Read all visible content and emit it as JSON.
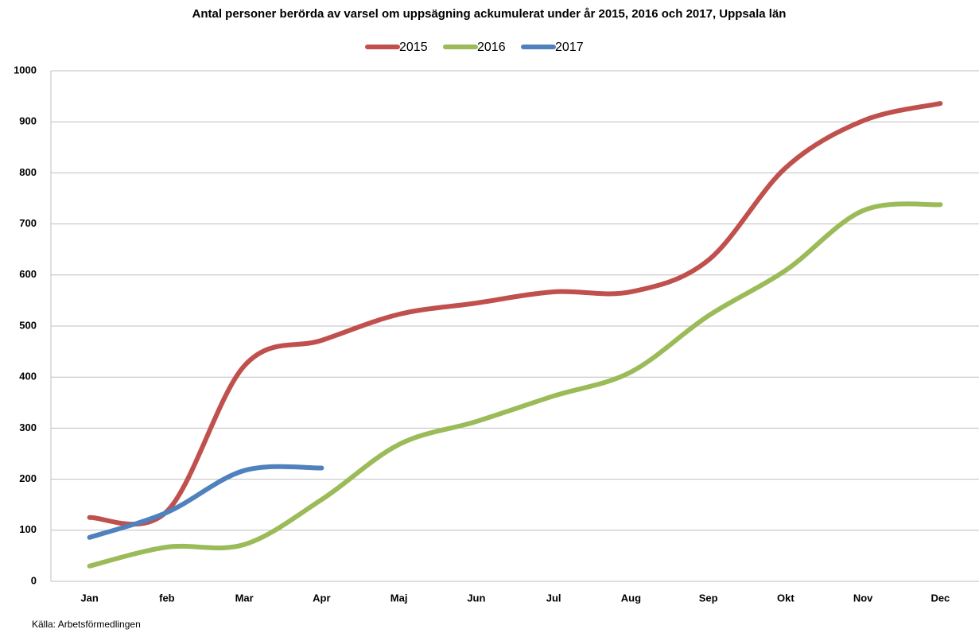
{
  "chart_data": {
    "type": "line",
    "title": "Antal personer berörda av varsel om uppsägning ackumulerat under år 2015, 2016 och 2017, Uppsala län",
    "source": "Källa: Arbetsförmedlingen",
    "categories": [
      "Jan",
      "feb",
      "Mar",
      "Apr",
      "Maj",
      "Jun",
      "Jul",
      "Aug",
      "Sep",
      "Okt",
      "Nov",
      "Dec"
    ],
    "series": [
      {
        "name": "2015",
        "color": "#c0504d",
        "values": [
          125,
          137,
          422,
          472,
          523,
          545,
          567,
          567,
          629,
          810,
          902,
          936
        ]
      },
      {
        "name": "2016",
        "color": "#9bbb59",
        "values": [
          30,
          67,
          72,
          160,
          268,
          313,
          363,
          410,
          520,
          609,
          726,
          738
        ]
      },
      {
        "name": "2017",
        "color": "#4f81bd",
        "values": [
          86,
          135,
          217,
          222,
          null,
          null,
          null,
          null,
          null,
          null,
          null,
          null
        ]
      }
    ],
    "ylim": [
      0,
      1000
    ],
    "yticks": [
      0,
      100,
      200,
      300,
      400,
      500,
      600,
      700,
      800,
      900,
      1000
    ],
    "grid": true,
    "smooth": true,
    "legend": "top"
  }
}
